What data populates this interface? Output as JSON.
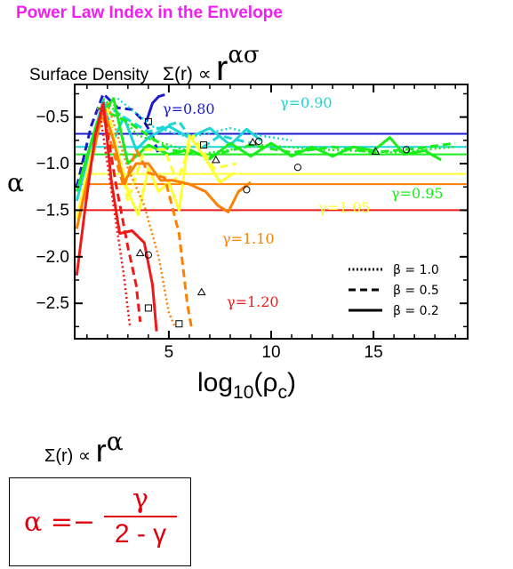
{
  "header": {
    "title": "Power Law Index in the Envelope",
    "subtitle_text": "Surface Density",
    "subtitle_formula": "Σ(r) ∝",
    "subtitle_r": "r",
    "subtitle_exponent": "ασ"
  },
  "chart_data": {
    "type": "line",
    "ylabel": "α",
    "xlabel_base": "log",
    "xlabel_sub": "10",
    "xlabel_arg": "(ρ",
    "xlabel_arg_sub": "c",
    "xlabel_close": ")",
    "xlim": [
      0.4,
      19.6
    ],
    "ylim": [
      -2.88,
      -0.15
    ],
    "xticks": [
      5,
      10,
      15
    ],
    "yticks": [
      -0.5,
      -1.0,
      -1.5,
      -2.0,
      -2.5
    ],
    "ytick_labels": [
      "−0.5",
      "−1.0",
      "−1.5",
      "−2.0",
      "−2.5"
    ],
    "legend_placement": "bottom-right",
    "legend": [
      {
        "label": "β = 1.0",
        "style": "dotted"
      },
      {
        "label": "β = 0.5",
        "style": "dashed"
      },
      {
        "label": "β = 0.2",
        "style": "solid"
      }
    ],
    "reference_lines": [
      {
        "name": "γ=0.80",
        "value": -0.68,
        "color": "#1a1acc"
      },
      {
        "name": "γ=0.90",
        "value": -0.82,
        "color": "#1ad6d6"
      },
      {
        "name": "γ=0.95",
        "value": -0.9,
        "color": "#1aee1a"
      },
      {
        "name": "γ=1.05",
        "value": -1.11,
        "color": "#ffff33"
      },
      {
        "name": "γ=1.10",
        "value": -1.22,
        "color": "#ff8000"
      },
      {
        "name": "γ=1.20",
        "value": -1.5,
        "color": "#ee1a1a"
      }
    ],
    "series": [
      {
        "name": "γ=0.80",
        "color": "#1a1acc",
        "style": "dashed",
        "points": [
          [
            0.5,
            -1.25
          ],
          [
            1.2,
            -0.6
          ],
          [
            1.8,
            -0.25
          ],
          [
            2.5,
            -0.4
          ],
          [
            3.2,
            -0.42
          ],
          [
            3.8,
            -0.55
          ],
          [
            4.2,
            -0.7
          ],
          [
            4.5,
            -0.9
          ]
        ]
      },
      {
        "name": "γ=0.80",
        "color": "#1a1acc",
        "style": "solid",
        "points": [
          [
            3.9,
            -0.55
          ],
          [
            4.2,
            -0.35
          ],
          [
            4.5,
            -0.28
          ],
          [
            4.8,
            -0.26
          ]
        ]
      },
      {
        "name": "γ=0.90",
        "color": "#1ad6d6",
        "style": "solid",
        "points": [
          [
            0.5,
            -1.4
          ],
          [
            1.2,
            -0.8
          ],
          [
            1.8,
            -0.32
          ],
          [
            2.3,
            -0.75
          ],
          [
            2.8,
            -0.5
          ],
          [
            3.4,
            -0.85
          ],
          [
            4.0,
            -0.72
          ],
          [
            5.0,
            -0.6
          ],
          [
            6.0,
            -0.72
          ],
          [
            7.0,
            -0.62
          ],
          [
            8.0,
            -0.8
          ],
          [
            8.8,
            -0.63
          ],
          [
            9.5,
            -0.75
          ]
        ]
      },
      {
        "name": "γ=0.90",
        "color": "#1ad6d6",
        "style": "dashed",
        "points": [
          [
            1.8,
            -0.35
          ],
          [
            2.8,
            -0.5
          ],
          [
            4.0,
            -0.66
          ],
          [
            5.5,
            -0.55
          ],
          [
            6.5,
            -0.85
          ],
          [
            7.5,
            -0.7
          ],
          [
            9.0,
            -0.78
          ]
        ]
      },
      {
        "name": "γ=0.90",
        "color": "#1ad6d6",
        "style": "dotted",
        "points": [
          [
            2.5,
            -0.3
          ],
          [
            4.2,
            -0.6
          ],
          [
            6.0,
            -0.72
          ],
          [
            8.0,
            -0.62
          ],
          [
            9.5,
            -0.7
          ],
          [
            11.0,
            -0.75
          ]
        ]
      },
      {
        "name": "γ=0.95",
        "color": "#1aee1a",
        "style": "solid",
        "points": [
          [
            0.5,
            -1.3
          ],
          [
            1.5,
            -0.55
          ],
          [
            2.3,
            -0.3
          ],
          [
            3.0,
            -1.0
          ],
          [
            4.0,
            -0.8
          ],
          [
            5.0,
            -0.9
          ],
          [
            6.0,
            -0.85
          ],
          [
            7.0,
            -0.95
          ],
          [
            8.0,
            -0.78
          ],
          [
            9.0,
            -0.92
          ],
          [
            10.0,
            -0.78
          ],
          [
            11.0,
            -0.92
          ],
          [
            12.0,
            -0.82
          ],
          [
            13.0,
            -0.92
          ],
          [
            14.0,
            -0.82
          ],
          [
            15.0,
            -0.86
          ],
          [
            15.8,
            -0.72
          ],
          [
            16.5,
            -0.9
          ],
          [
            17.5,
            -0.86
          ],
          [
            18.3,
            -0.96
          ]
        ]
      },
      {
        "name": "γ=0.95",
        "color": "#1aee1a",
        "style": "dashed",
        "points": [
          [
            1.5,
            -0.4
          ],
          [
            3.0,
            -0.55
          ],
          [
            5.0,
            -0.85
          ],
          [
            7.0,
            -0.92
          ],
          [
            9.0,
            -0.8
          ],
          [
            11.0,
            -0.88
          ],
          [
            13.0,
            -0.82
          ],
          [
            15.0,
            -0.88
          ],
          [
            17.0,
            -0.84
          ],
          [
            19.0,
            -0.78
          ]
        ]
      },
      {
        "name": "γ=0.95",
        "color": "#1aee1a",
        "style": "dotted",
        "points": [
          [
            1.8,
            -0.3
          ],
          [
            3.5,
            -0.7
          ],
          [
            6.5,
            -0.9
          ],
          [
            9.5,
            -0.8
          ],
          [
            12.5,
            -0.85
          ],
          [
            16.0,
            -0.88
          ],
          [
            19.0,
            -0.82
          ]
        ]
      },
      {
        "name": "γ=1.05",
        "color": "#ffff33",
        "style": "solid",
        "points": [
          [
            0.5,
            -1.6
          ],
          [
            1.2,
            -0.9
          ],
          [
            1.8,
            -0.45
          ],
          [
            2.3,
            -0.7
          ],
          [
            3.0,
            -1.3
          ],
          [
            3.5,
            -1.55
          ],
          [
            4.0,
            -1.05
          ],
          [
            4.5,
            -1.3
          ],
          [
            5.0,
            -1.2
          ],
          [
            5.5,
            -1.5
          ],
          [
            6.0,
            -0.7
          ],
          [
            6.8,
            -0.95
          ],
          [
            7.5,
            -1.2
          ],
          [
            8.2,
            -1.1
          ]
        ]
      },
      {
        "name": "γ=1.05",
        "color": "#ffff33",
        "style": "dashed",
        "points": [
          [
            2.0,
            -0.4
          ],
          [
            3.0,
            -1.4
          ],
          [
            3.8,
            -0.85
          ],
          [
            4.8,
            -0.85
          ],
          [
            5.4,
            -1.2
          ],
          [
            6.2,
            -0.7
          ],
          [
            7.2,
            -1.05
          ],
          [
            8.3,
            -1.0
          ]
        ]
      },
      {
        "name": "γ=1.10",
        "color": "#ff8000",
        "style": "solid",
        "points": [
          [
            0.5,
            -1.7
          ],
          [
            1.2,
            -1.0
          ],
          [
            1.8,
            -0.4
          ],
          [
            2.3,
            -0.75
          ],
          [
            2.8,
            -1.2
          ],
          [
            3.4,
            -1.0
          ],
          [
            4.0,
            -1.0
          ],
          [
            4.6,
            -1.18
          ],
          [
            5.2,
            -1.18
          ],
          [
            6.0,
            -1.22
          ],
          [
            6.8,
            -1.3
          ],
          [
            7.4,
            -1.45
          ],
          [
            7.9,
            -1.52
          ],
          [
            8.4,
            -1.3
          ],
          [
            9.0,
            -1.2
          ]
        ]
      },
      {
        "name": "γ=1.10",
        "color": "#ff8000",
        "style": "dashed",
        "points": [
          [
            1.8,
            -0.5
          ],
          [
            2.8,
            -1.25
          ],
          [
            3.4,
            -0.85
          ],
          [
            4.0,
            -1.1
          ],
          [
            4.8,
            -1.15
          ],
          [
            5.5,
            -1.75
          ],
          [
            5.9,
            -2.5
          ],
          [
            6.1,
            -2.75
          ]
        ]
      },
      {
        "name": "γ=1.10",
        "color": "#ff8000",
        "style": "dotted",
        "points": [
          [
            2.0,
            -0.35
          ],
          [
            3.0,
            -1.05
          ],
          [
            3.8,
            -1.45
          ],
          [
            4.5,
            -2.0
          ],
          [
            5.0,
            -2.6
          ],
          [
            5.3,
            -2.75
          ]
        ]
      },
      {
        "name": "γ=1.20",
        "color": "#ee1a1a",
        "style": "solid",
        "points": [
          [
            0.5,
            -2.2
          ],
          [
            0.9,
            -1.5
          ],
          [
            1.4,
            -0.7
          ],
          [
            1.8,
            -0.35
          ],
          [
            2.2,
            -1.2
          ],
          [
            2.6,
            -1.75
          ],
          [
            3.2,
            -1.72
          ],
          [
            3.8,
            -1.85
          ],
          [
            4.2,
            -2.3
          ],
          [
            4.4,
            -2.8
          ]
        ]
      },
      {
        "name": "γ=1.20",
        "color": "#ee1a1a",
        "style": "dashed",
        "points": [
          [
            1.8,
            -0.4
          ],
          [
            2.4,
            -1.2
          ],
          [
            3.0,
            -1.9
          ],
          [
            3.4,
            -2.3
          ],
          [
            3.6,
            -2.7
          ]
        ]
      },
      {
        "name": "γ=1.20",
        "color": "#ee1a1a",
        "style": "dotted",
        "points": [
          [
            1.6,
            -0.4
          ],
          [
            2.2,
            -1.3
          ],
          [
            2.8,
            -2.2
          ],
          [
            3.1,
            -2.75
          ]
        ]
      }
    ],
    "markers": [
      {
        "shape": "square",
        "x": 4.0,
        "y": -0.55
      },
      {
        "shape": "square",
        "x": 6.7,
        "y": -0.8
      },
      {
        "shape": "square",
        "x": 4.0,
        "y": -2.55
      },
      {
        "shape": "square",
        "x": 5.5,
        "y": -2.72
      },
      {
        "shape": "triangle",
        "x": 9.1,
        "y": -0.77
      },
      {
        "shape": "triangle",
        "x": 7.3,
        "y": -0.96
      },
      {
        "shape": "triangle",
        "x": 15.1,
        "y": -0.87
      },
      {
        "shape": "triangle",
        "x": 3.6,
        "y": -1.96
      },
      {
        "shape": "triangle",
        "x": 6.6,
        "y": -2.38
      },
      {
        "shape": "circle",
        "x": 9.4,
        "y": -0.76
      },
      {
        "shape": "circle",
        "x": 11.3,
        "y": -1.04
      },
      {
        "shape": "circle",
        "x": 8.8,
        "y": -1.28
      },
      {
        "shape": "circle",
        "x": 4.0,
        "y": -1.98
      },
      {
        "shape": "circle",
        "x": 16.6,
        "y": -0.85
      }
    ]
  },
  "relation": {
    "lhs": "Σ(r) ∝",
    "r": "r",
    "exponent": "α"
  },
  "formula": {
    "lhs": "α =−",
    "numerator": "γ",
    "denominator": "2 - γ"
  }
}
